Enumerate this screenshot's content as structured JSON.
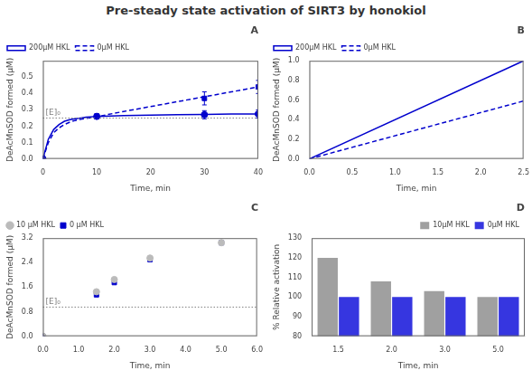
{
  "title": "Pre-steady state activation of SIRT3 by honokiol",
  "chart_data": [
    {
      "type": "line",
      "title": "A",
      "xlabel": "Time, min",
      "ylabel": "DeAcMnSOD formed (μM)",
      "xlim": [
        0,
        40
      ],
      "ylim": [
        0,
        0.6
      ],
      "xticks": [
        0,
        10,
        20,
        30,
        40
      ],
      "yticks": [
        {
          "value": 0.0,
          "label": "0.0"
        },
        0.1,
        0.2,
        0.3,
        0.4,
        0.5
      ],
      "grid": false,
      "legend": "upper left",
      "series": [
        {
          "name": "200μM HKL",
          "color": "#0000CD",
          "line_style": "solid",
          "x": [
            0,
            1,
            2,
            3,
            4,
            5,
            6,
            7,
            8,
            10,
            15,
            20,
            25,
            30,
            35,
            40
          ],
          "values": [
            0,
            0.12,
            0.18,
            0.21,
            0.23,
            0.24,
            0.245,
            0.25,
            0.255,
            0.26,
            0.265,
            0.268,
            0.27,
            0.272,
            0.274,
            0.275
          ]
        },
        {
          "name": "0μM HKL",
          "color": "#0000CD",
          "line_style": "dashed",
          "x": [
            0,
            1,
            2,
            3,
            4,
            5,
            6,
            7,
            8,
            10,
            15,
            20,
            25,
            30,
            35,
            40
          ],
          "values": [
            0,
            0.1,
            0.16,
            0.19,
            0.21,
            0.225,
            0.235,
            0.242,
            0.248,
            0.258,
            0.29,
            0.32,
            0.35,
            0.38,
            0.41,
            0.44
          ]
        },
        {
          "type": "scatter",
          "color": "#0000CD",
          "marker": "circle",
          "x": [
            0,
            10,
            30,
            40
          ],
          "values": [
            0.0,
            0.26,
            0.27,
            0.275
          ],
          "errors": [
            0,
            0.015,
            0.025,
            0.025
          ]
        },
        {
          "type": "scatter",
          "color": "#0000CD",
          "marker": "square",
          "x": [
            0,
            10,
            30,
            40
          ],
          "values": [
            0.0,
            0.26,
            0.37,
            0.44
          ],
          "errors": [
            0,
            0.015,
            0.04,
            0.04
          ]
        }
      ],
      "annotations": [
        {
          "text": "[E]₀",
          "y": 0.25
        }
      ]
    },
    {
      "type": "line",
      "title": "B",
      "xlabel": "Time, min",
      "ylabel": "DeAcMnSOD formed (μM)",
      "xlim": [
        0,
        2.5
      ],
      "ylim": [
        0,
        1.0
      ],
      "xticks": [
        {
          "value": 0.0,
          "label": "0.0"
        },
        0.5,
        {
          "value": 1.0,
          "label": "1.0"
        },
        1.5,
        {
          "value": 2.0,
          "label": "2.0"
        },
        2.5
      ],
      "yticks": [
        {
          "value": 0.0,
          "label": "0.0"
        },
        0.2,
        0.4,
        0.6,
        0.8,
        {
          "value": 1.0,
          "label": "1.0"
        }
      ],
      "grid": false,
      "legend": "upper left",
      "series": [
        {
          "name": "200μM HKL",
          "color": "#0000CD",
          "line_style": "solid",
          "x": [
            0,
            2.5
          ],
          "values": [
            0,
            1.0
          ]
        },
        {
          "name": "0μM HKL",
          "color": "#0000CD",
          "line_style": "dashed",
          "x": [
            0,
            2.5
          ],
          "values": [
            0,
            0.59
          ]
        }
      ]
    },
    {
      "type": "scatter",
      "title": "C",
      "xlabel": "Time, min",
      "ylabel": "DeAcMnSOD formed (μM)",
      "xlim": [
        0.0,
        6.0
      ],
      "ylim": [
        0.0,
        3.2
      ],
      "xticks": [
        {
          "value": 0.0,
          "label": "0.0"
        },
        {
          "value": 1.0,
          "label": "1.0"
        },
        {
          "value": 2.0,
          "label": "2.0"
        },
        {
          "value": 3.0,
          "label": "3.0"
        },
        {
          "value": 4.0,
          "label": "4.0"
        },
        {
          "value": 5.0,
          "label": "5.0"
        },
        {
          "value": 6.0,
          "label": "6.0"
        }
      ],
      "yticks": [
        {
          "value": 0.0,
          "label": "0.0"
        },
        0.8,
        1.6,
        2.4,
        3.2
      ],
      "grid": false,
      "legend": "upper left",
      "series": [
        {
          "name": "10 μM HKL",
          "color": "#BBBBBB",
          "marker": "circle",
          "x": [
            0.0,
            1.5,
            2.0,
            3.0,
            5.0
          ],
          "values": [
            0.0,
            1.45,
            1.85,
            2.55,
            3.05
          ]
        },
        {
          "name": "0 μM HKL",
          "color": "#0000CD",
          "marker": "square",
          "x": [
            0.0,
            1.5,
            2.0,
            3.0,
            5.0
          ],
          "values": [
            0.0,
            1.35,
            1.75,
            2.5,
            3.05
          ]
        }
      ],
      "annotations": [
        {
          "text": "[E]₀",
          "y": 0.95
        }
      ]
    },
    {
      "type": "bar",
      "title": "D",
      "xlabel": "Time, min",
      "ylabel": "% Relative activation",
      "categories": [
        "1.5",
        "2.0",
        "3.0",
        "5.0"
      ],
      "ylim": [
        80,
        130
      ],
      "yticks": [
        80,
        90,
        100,
        110,
        120,
        130
      ],
      "grid": false,
      "legend": "upper right",
      "series": [
        {
          "name": "10μM HKL",
          "color": "#A0A0A0",
          "values": [
            120,
            108,
            103,
            100
          ]
        },
        {
          "name": "0μM HKL",
          "color": "#3636E0",
          "values": [
            100,
            100,
            100,
            100
          ]
        }
      ]
    }
  ]
}
